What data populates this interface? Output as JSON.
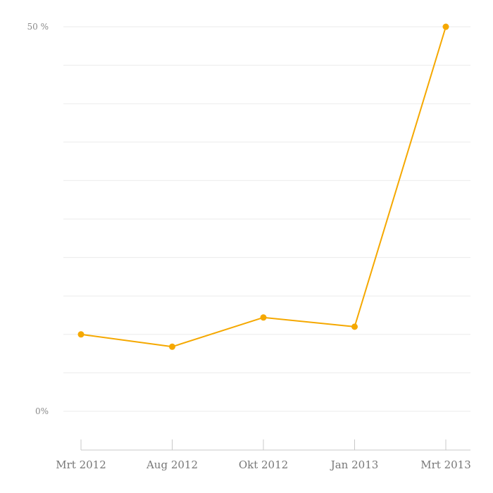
{
  "chart_data": {
    "type": "line",
    "categories": [
      "Mrt 2012",
      "Aug 2012",
      "Okt 2012",
      "Jan 2013",
      "Mrt 2013"
    ],
    "series": [
      {
        "values": [
          10,
          8.4,
          12.2,
          11,
          50
        ]
      }
    ],
    "ylim": [
      0,
      50
    ],
    "y_ticks": [
      {
        "value": 0,
        "label": "0%"
      },
      {
        "value": 50,
        "label": "50 %"
      }
    ],
    "grid": true,
    "colors": {
      "line": "#F5A800",
      "grid": "#ebebeb",
      "axis": "#c8c8c8"
    }
  }
}
